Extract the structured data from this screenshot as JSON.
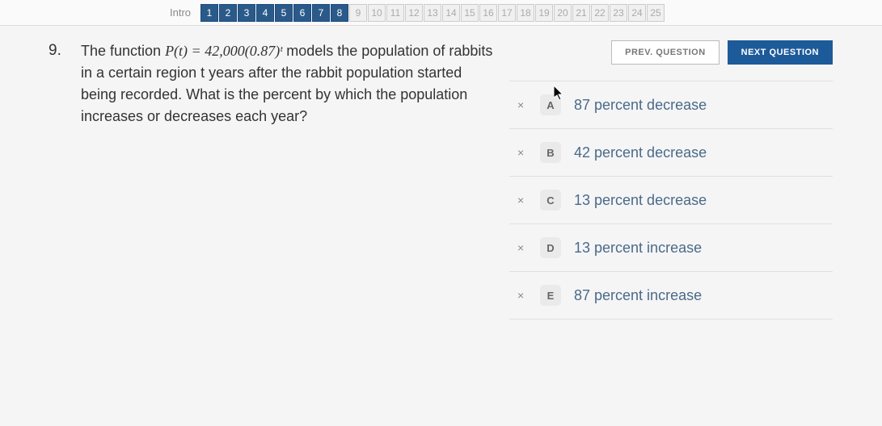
{
  "nav": {
    "intro_label": "Intro",
    "items": [
      {
        "n": "1",
        "state": "done"
      },
      {
        "n": "2",
        "state": "done"
      },
      {
        "n": "3",
        "state": "done"
      },
      {
        "n": "4",
        "state": "done"
      },
      {
        "n": "5",
        "state": "done"
      },
      {
        "n": "6",
        "state": "done"
      },
      {
        "n": "7",
        "state": "done"
      },
      {
        "n": "8",
        "state": "done"
      },
      {
        "n": "9",
        "state": "future"
      },
      {
        "n": "10",
        "state": "future"
      },
      {
        "n": "11",
        "state": "future"
      },
      {
        "n": "12",
        "state": "future"
      },
      {
        "n": "13",
        "state": "future"
      },
      {
        "n": "14",
        "state": "future"
      },
      {
        "n": "15",
        "state": "future"
      },
      {
        "n": "16",
        "state": "future"
      },
      {
        "n": "17",
        "state": "future"
      },
      {
        "n": "18",
        "state": "future"
      },
      {
        "n": "19",
        "state": "future"
      },
      {
        "n": "20",
        "state": "future"
      },
      {
        "n": "21",
        "state": "future"
      },
      {
        "n": "22",
        "state": "future"
      },
      {
        "n": "23",
        "state": "future"
      },
      {
        "n": "24",
        "state": "future"
      },
      {
        "n": "25",
        "state": "future"
      }
    ]
  },
  "question": {
    "number": "9.",
    "prefix": "The function ",
    "formula": "P(t) = 42,000(0.87)ᵗ",
    "body_rest": " models the population of rabbits in a certain region t years after the rabbit population started being recorded. What is the percent by which the population increases or decreases each year?"
  },
  "buttons": {
    "prev": "PREV. QUESTION",
    "next": "NEXT QUESTION"
  },
  "answers": [
    {
      "mark": "×",
      "letter": "A",
      "text": "87 percent decrease"
    },
    {
      "mark": "×",
      "letter": "B",
      "text": "42 percent decrease"
    },
    {
      "mark": "×",
      "letter": "C",
      "text": "13 percent decrease"
    },
    {
      "mark": "×",
      "letter": "D",
      "text": "13 percent increase"
    },
    {
      "mark": "×",
      "letter": "E",
      "text": "87 percent increase"
    }
  ],
  "colors": {
    "nav_done_bg": "#2a5a8a",
    "nav_done_text": "#ffffff",
    "nav_future_bg": "#f0f0f0",
    "nav_future_text": "#aaaaaa",
    "btn_next_bg": "#1d5a9a",
    "btn_next_text": "#ffffff",
    "btn_prev_bg": "#ffffff",
    "btn_prev_text": "#777777",
    "answer_text": "#4a6a8a",
    "badge_bg": "#eaeaea",
    "border": "#e0e0e0"
  },
  "typography": {
    "question_fontsize": 18,
    "answer_fontsize": 18,
    "nav_fontsize": 12,
    "button_fontsize": 11
  }
}
